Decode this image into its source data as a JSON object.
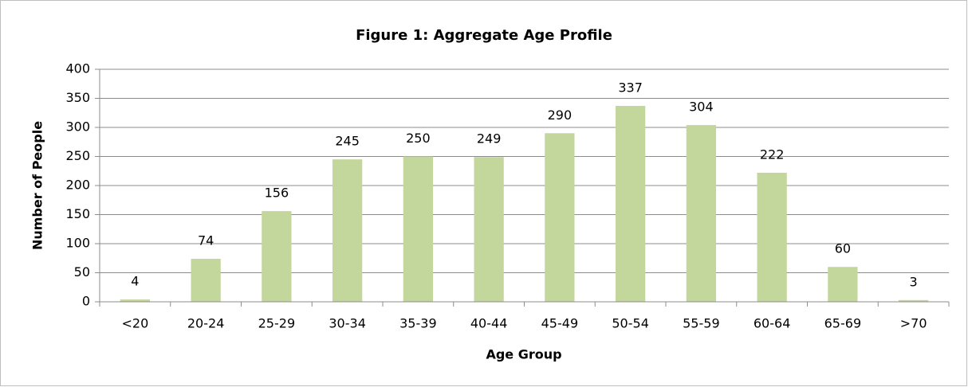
{
  "chart_data": {
    "type": "bar",
    "title": "Figure 1:  Aggregate Age Profile",
    "x_label": "Age Group",
    "y_label": "Number of People",
    "categories": [
      "<20",
      "20-24",
      "25-29",
      "30-34",
      "35-39",
      "40-44",
      "45-49",
      "50-54",
      "55-59",
      "60-64",
      "65-69",
      ">70"
    ],
    "values": [
      4,
      74,
      156,
      245,
      250,
      249,
      290,
      337,
      304,
      222,
      60,
      3
    ],
    "color": "#c3d69b",
    "ylim": [
      0,
      400
    ],
    "yticks": [
      0,
      50,
      100,
      150,
      200,
      250,
      300,
      350,
      400
    ],
    "grid": true
  }
}
